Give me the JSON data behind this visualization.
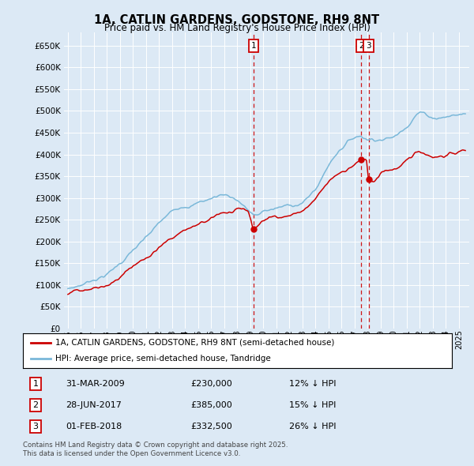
{
  "title": "1A, CATLIN GARDENS, GODSTONE, RH9 8NT",
  "subtitle": "Price paid vs. HM Land Registry's House Price Index (HPI)",
  "bg_color": "#dce9f5",
  "hpi_color": "#7ab8d9",
  "price_color": "#cc0000",
  "ylim": [
    0,
    680000
  ],
  "yticks": [
    0,
    50000,
    100000,
    150000,
    200000,
    250000,
    300000,
    350000,
    400000,
    450000,
    500000,
    550000,
    600000,
    650000
  ],
  "legend_label_price": "1A, CATLIN GARDENS, GODSTONE, RH9 8NT (semi-detached house)",
  "legend_label_hpi": "HPI: Average price, semi-detached house, Tandridge",
  "transactions": [
    {
      "num": 1,
      "date": "31-MAR-2009",
      "price": 230000,
      "hpi_diff": "12% ↓ HPI",
      "x_year": 2009.25
    },
    {
      "num": 2,
      "date": "28-JUN-2017",
      "price": 385000,
      "hpi_diff": "15% ↓ HPI",
      "x_year": 2017.5
    },
    {
      "num": 3,
      "date": "01-FEB-2018",
      "price": 332500,
      "hpi_diff": "26% ↓ HPI",
      "x_year": 2018.08
    }
  ],
  "footer": "Contains HM Land Registry data © Crown copyright and database right 2025.\nThis data is licensed under the Open Government Licence v3.0.",
  "xlim_start": 1994.7,
  "xlim_end": 2025.8
}
